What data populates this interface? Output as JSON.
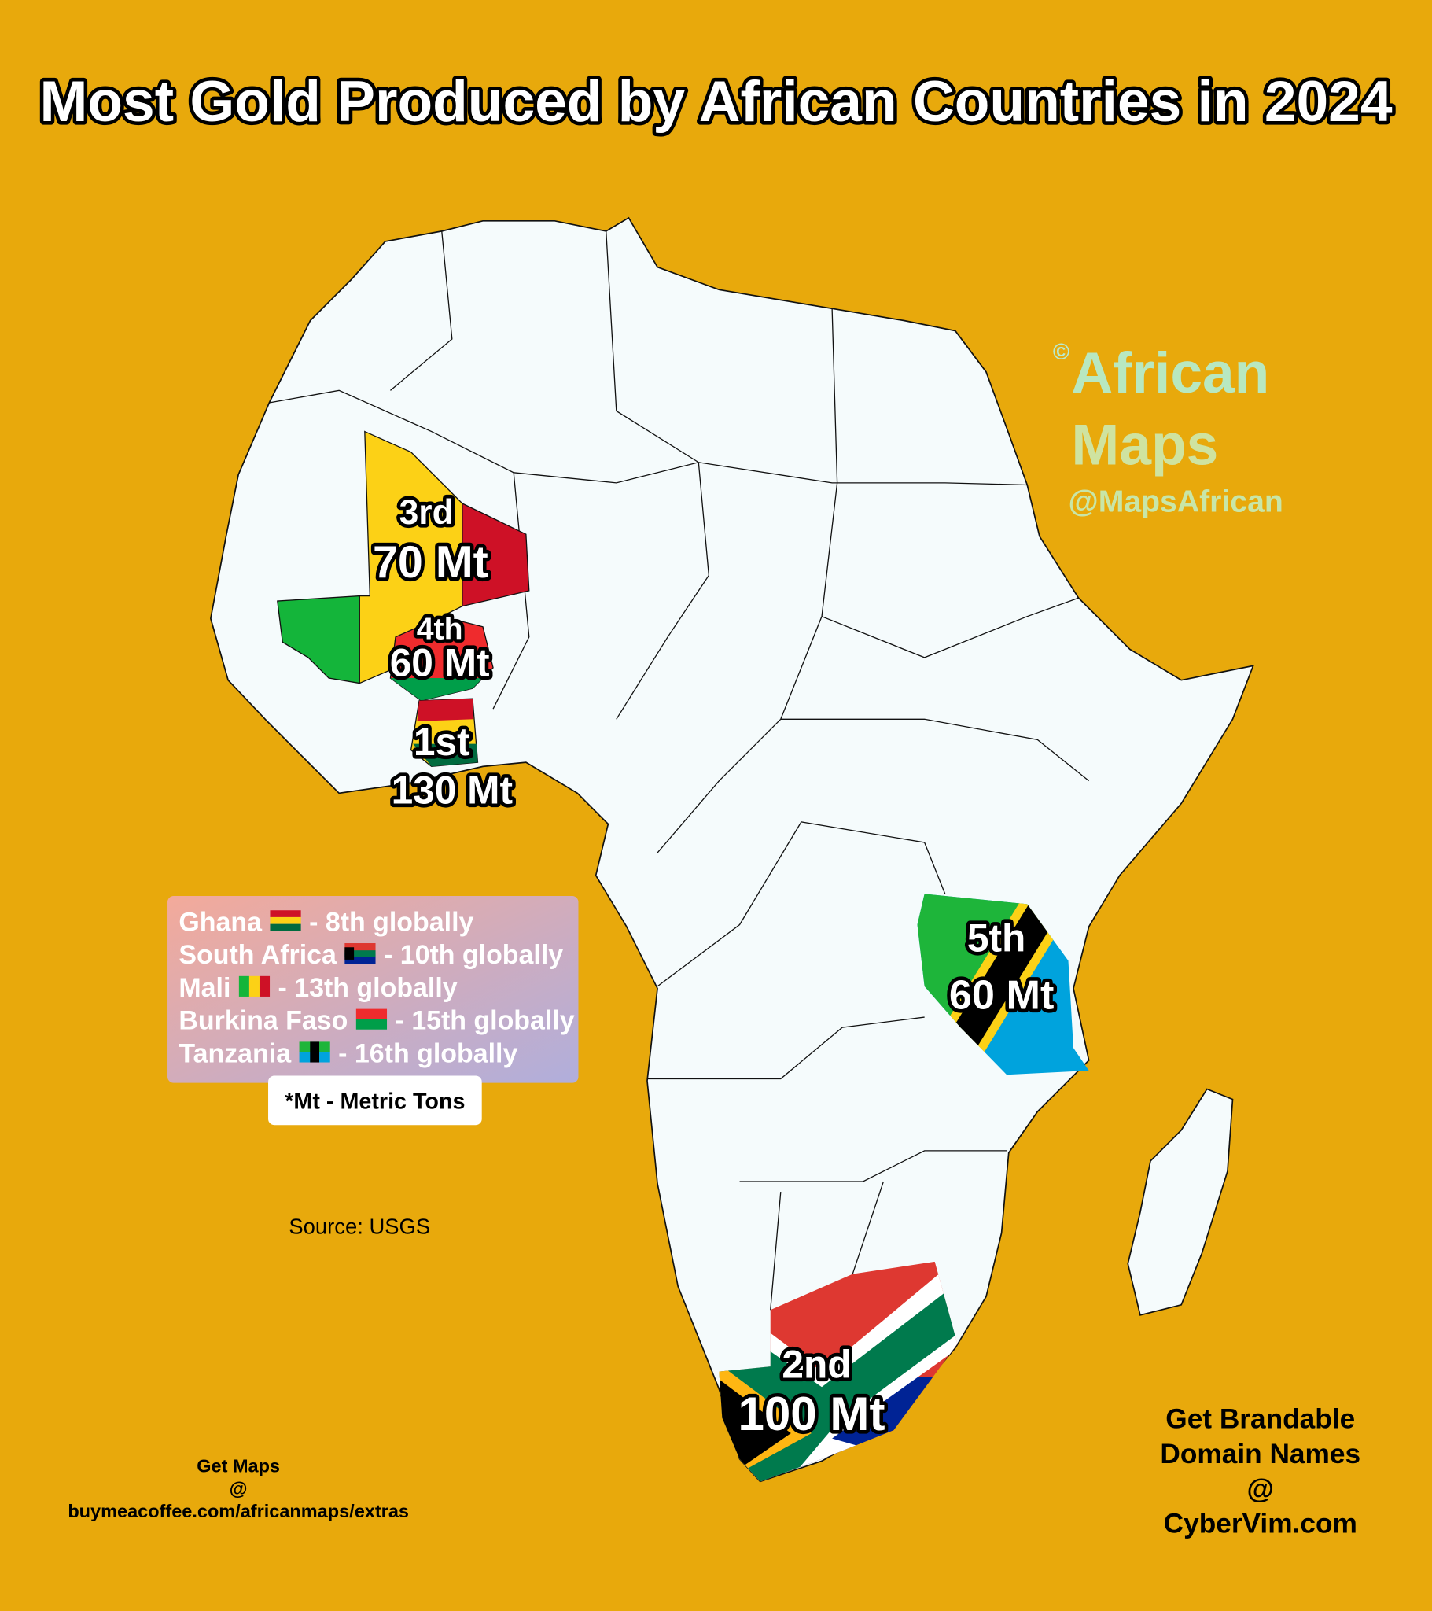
{
  "title": "Most Gold Produced by African Countries in 2024",
  "watermark": {
    "copyright": "©",
    "brand": "African",
    "brand2": "Maps",
    "handle": "@MapsAfrican"
  },
  "labels": [
    {
      "rank": "3rd",
      "amount": "70 Mt"
    },
    {
      "rank": "4th",
      "amount": "60 Mt"
    },
    {
      "rank": "1st",
      "amount": "130 Mt"
    },
    {
      "rank": "5th",
      "amount": "60 Mt"
    },
    {
      "rank": "2nd",
      "amount": "100 Mt"
    }
  ],
  "legend": [
    {
      "country": "Ghana",
      "rank": "- 8th globally"
    },
    {
      "country": "South Africa",
      "rank": "- 10th globally"
    },
    {
      "country": "Mali",
      "rank": "- 13th globally"
    },
    {
      "country": "Burkina Faso",
      "rank": "- 15th globally"
    },
    {
      "country": "Tanzania",
      "rank": "- 16th globally"
    }
  ],
  "note": "*Mt - Metric Tons",
  "source": "Source: USGS",
  "promo_left": [
    "Get Maps",
    "@",
    "buymeacoffee.com/africanmaps/extras"
  ],
  "promo_right": [
    "Get Brandable",
    "Domain Names",
    "@",
    "CyberVim.com"
  ]
}
